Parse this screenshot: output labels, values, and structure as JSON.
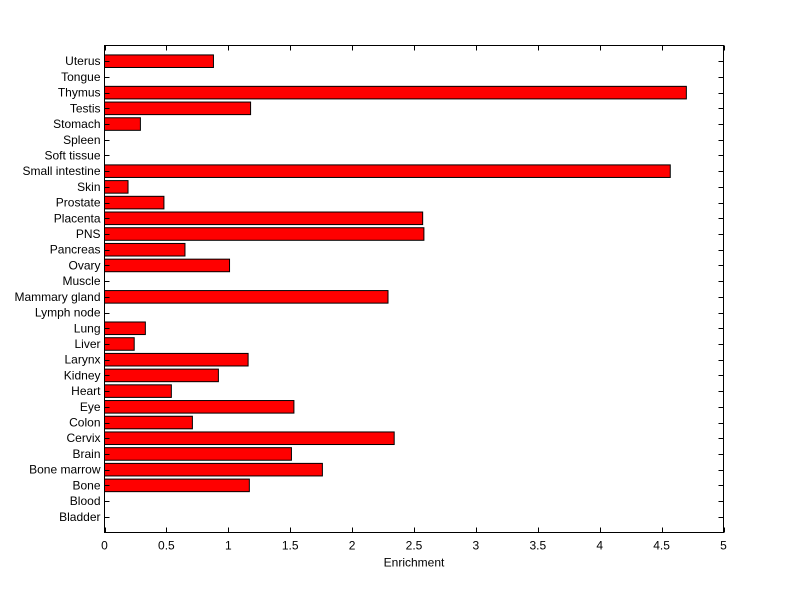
{
  "chart_data": {
    "type": "bar",
    "orientation": "horizontal",
    "categories": [
      "Bladder",
      "Blood",
      "Bone",
      "Bone marrow",
      "Brain",
      "Cervix",
      "Colon",
      "Eye",
      "Heart",
      "Kidney",
      "Larynx",
      "Liver",
      "Lung",
      "Lymph node",
      "Mammary gland",
      "Muscle",
      "Ovary",
      "Pancreas",
      "PNS",
      "Placenta",
      "Prostate",
      "Skin",
      "Small intestine",
      "Soft tissue",
      "Spleen",
      "Stomach",
      "Testis",
      "Thymus",
      "Tongue",
      "Uterus"
    ],
    "values": [
      0,
      0,
      1.17,
      1.76,
      1.51,
      2.34,
      0.71,
      1.53,
      0.54,
      0.92,
      1.16,
      0.24,
      0.33,
      0,
      2.29,
      0,
      1.01,
      0.65,
      2.58,
      2.57,
      0.48,
      0.19,
      4.57,
      0,
      0,
      0.29,
      1.18,
      4.7,
      0,
      0.88
    ],
    "xlabel": "Enrichment",
    "ylabel": "",
    "title": "",
    "xlim": [
      0,
      5
    ],
    "xticks": [
      0,
      0.5,
      1,
      1.5,
      2,
      2.5,
      3,
      3.5,
      4,
      4.5,
      5
    ],
    "xtick_labels": [
      "0",
      "0.5",
      "1",
      "1.5",
      "2",
      "2.5",
      "3",
      "3.5",
      "4",
      "4.5",
      "5"
    ],
    "grid": false,
    "bar_color": "#ff0000",
    "edge_color": "#000000"
  }
}
